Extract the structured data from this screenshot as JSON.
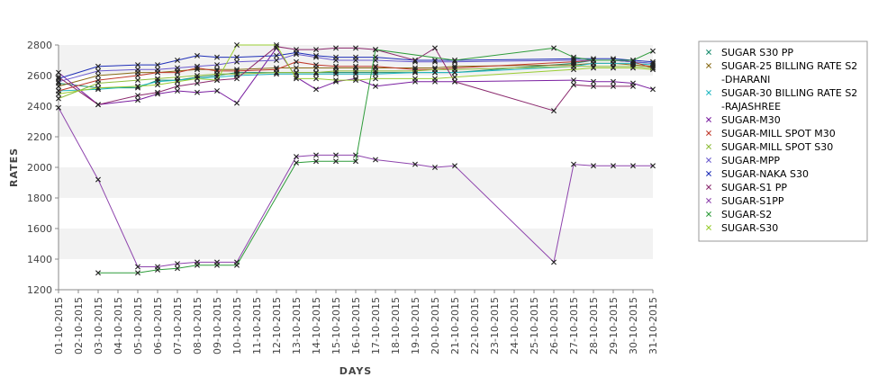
{
  "chart_data": {
    "type": "line",
    "xlabel": "DAYS",
    "ylabel": "RATES",
    "ylim": [
      1200,
      2800
    ],
    "yticks": [
      1200,
      1400,
      1600,
      1800,
      2000,
      2200,
      2400,
      2600,
      2800
    ],
    "grid": "alternating horizontal bands",
    "legend": "right",
    "categories": [
      "01-10-2015",
      "02-10-2015",
      "03-10-2015",
      "04-10-2015",
      "05-10-2015",
      "06-10-2015",
      "07-10-2015",
      "08-10-2015",
      "09-10-2015",
      "10-10-2015",
      "11-10-2015",
      "12-10-2015",
      "13-10-2015",
      "14-10-2015",
      "15-10-2015",
      "16-10-2015",
      "17-10-2015",
      "18-10-2015",
      "19-10-2015",
      "20-10-2015",
      "21-10-2015",
      "22-10-2015",
      "23-10-2015",
      "24-10-2015",
      "25-10-2015",
      "26-10-2015",
      "27-10-2015",
      "28-10-2015",
      "29-10-2015",
      "30-10-2015",
      "31-10-2015"
    ],
    "series": [
      {
        "name": "SUGAR S30 PP",
        "color": "#1a8c6e",
        "values": [
          2550,
          null,
          2520,
          null,
          2520,
          2570,
          2570,
          2590,
          2600,
          2620,
          null,
          2620,
          2620,
          2620,
          2620,
          2620,
          2620,
          null,
          2620,
          2620,
          2620,
          null,
          null,
          null,
          null,
          null,
          2680,
          2700,
          2700,
          2690,
          2680
        ]
      },
      {
        "name": "SUGAR-25 BILLING RATE S2 -DHARANI",
        "color": "#8a6d1a",
        "values": [
          2530,
          null,
          2600,
          null,
          2620,
          2620,
          2630,
          2640,
          2640,
          2640,
          null,
          2650,
          2650,
          2650,
          2650,
          2650,
          2650,
          null,
          2650,
          2650,
          2660,
          null,
          null,
          null,
          null,
          null,
          2670,
          2680,
          2680,
          2670,
          2660
        ]
      },
      {
        "name": "SUGAR-30 BILLING RATE S2 -RAJASHREE",
        "color": "#22b8c2",
        "values": [
          2500,
          null,
          2510,
          null,
          2530,
          2560,
          2570,
          2580,
          2590,
          2600,
          null,
          2610,
          2610,
          2610,
          2610,
          2610,
          2610,
          null,
          2620,
          2620,
          2620,
          null,
          null,
          null,
          null,
          null,
          2660,
          2680,
          2680,
          2680,
          2670
        ]
      },
      {
        "name": "SUGAR-M30",
        "color": "#7a1fa0",
        "values": [
          2620,
          null,
          2410,
          null,
          2440,
          2480,
          2500,
          2490,
          2500,
          2420,
          null,
          2780,
          2590,
          2510,
          2560,
          2580,
          2530,
          null,
          2560,
          2560,
          2560,
          null,
          null,
          null,
          null,
          null,
          2570,
          2560,
          2560,
          2550,
          2510
        ]
      },
      {
        "name": "SUGAR-MILL SPOT M30",
        "color": "#c0392b",
        "values": [
          2500,
          null,
          2570,
          null,
          2600,
          2620,
          2620,
          2650,
          2630,
          2630,
          null,
          2640,
          2690,
          2670,
          2660,
          2660,
          2660,
          null,
          2640,
          2640,
          2650,
          null,
          null,
          null,
          null,
          null,
          2690,
          2700,
          2700,
          2690,
          2650
        ]
      },
      {
        "name": "SUGAR-MILL SPOT S30",
        "color": "#8fbc3a",
        "values": [
          2450,
          null,
          2550,
          null,
          2570,
          2580,
          2590,
          2600,
          2610,
          2610,
          null,
          2620,
          2620,
          2620,
          2630,
          2630,
          2630,
          null,
          2630,
          2640,
          2640,
          null,
          null,
          null,
          null,
          null,
          2660,
          2660,
          2660,
          2660,
          2650
        ]
      },
      {
        "name": "SUGAR-MPP",
        "color": "#6a5acd",
        "values": [
          2560,
          null,
          2630,
          null,
          2640,
          2640,
          2650,
          2660,
          2670,
          2690,
          null,
          2700,
          2740,
          2720,
          2700,
          2700,
          2700,
          null,
          2690,
          2690,
          2690,
          null,
          null,
          null,
          null,
          null,
          2700,
          2700,
          2700,
          2690,
          2680
        ]
      },
      {
        "name": "SUGAR-NAKA S30",
        "color": "#1f2fb8",
        "values": [
          2580,
          null,
          2660,
          null,
          2670,
          2670,
          2700,
          2730,
          2720,
          2720,
          null,
          2730,
          2750,
          2730,
          2720,
          2720,
          2720,
          null,
          2700,
          2700,
          2700,
          null,
          null,
          null,
          null,
          null,
          2710,
          2710,
          2710,
          2700,
          2690
        ]
      },
      {
        "name": "SUGAR-S1 PP",
        "color": "#8b2a6e",
        "values": [
          2590,
          null,
          2410,
          null,
          2470,
          2490,
          2530,
          2550,
          2570,
          2580,
          null,
          2790,
          2770,
          2770,
          2780,
          2780,
          2770,
          null,
          2700,
          2780,
          2560,
          null,
          null,
          null,
          null,
          2370,
          2540,
          2530,
          2530,
          2530,
          null
        ]
      },
      {
        "name": "SUGAR-S1PP",
        "color": "#8e44ad",
        "values": [
          2390,
          null,
          1920,
          null,
          1350,
          1350,
          1370,
          1380,
          1380,
          1380,
          null,
          null,
          2070,
          2080,
          2080,
          2080,
          2050,
          null,
          2020,
          2000,
          2010,
          null,
          null,
          null,
          null,
          1380,
          2020,
          2010,
          2010,
          2010,
          2010
        ]
      },
      {
        "name": "SUGAR-S2",
        "color": "#2e9c3a",
        "values": [
          null,
          null,
          1310,
          null,
          1310,
          1330,
          1340,
          1360,
          1360,
          1360,
          null,
          null,
          2030,
          2040,
          2040,
          2040,
          2770,
          null,
          null,
          null,
          2700,
          null,
          null,
          null,
          null,
          2780,
          2720,
          2700,
          2700,
          2700,
          2760
        ]
      },
      {
        "name": "SUGAR-S30",
        "color": "#9acd32",
        "values": [
          2480,
          null,
          2520,
          null,
          2530,
          2540,
          2560,
          2580,
          2570,
          2800,
          null,
          2800,
          2580,
          2580,
          2570,
          2570,
          2580,
          null,
          2580,
          2580,
          2590,
          null,
          null,
          null,
          null,
          null,
          2640,
          2650,
          2650,
          2650,
          2640
        ]
      }
    ]
  }
}
